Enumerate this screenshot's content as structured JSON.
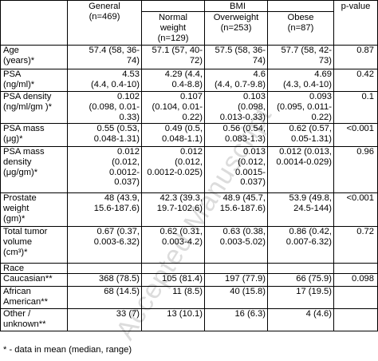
{
  "watermark": "Accepted Manuscript",
  "header": {
    "general": "General\n(n=469)",
    "bmi": "BMI",
    "normal": "Normal\nweight\n(n=129)",
    "overweight": "Overweight\n(n=253)",
    "obese": "Obese\n(n=87)",
    "pvalue": "p-value"
  },
  "rows": [
    {
      "label": "Age\n(years)*",
      "general": "57.4 (58, 36-\n74)",
      "normal": "57.1 (57, 40-\n72)",
      "overweight": "57.5 (58, 36-\n74)",
      "obese": "57.7 (58, 42-\n73)",
      "p": "0.87"
    },
    {
      "label": "PSA\n(ng/ml)*",
      "general": "4.53\n(4.4, 0.4-10)",
      "normal": "4.29 (4.4,\n0.4-8.8)",
      "overweight": "4.6\n(4.4, 0.7-9.8)",
      "obese": "4.69\n(4.3, 0.4-10)",
      "p": "0.42"
    },
    {
      "label": "PSA density\n(ng/ml/gm )*",
      "general": "0.102\n(0.098, 0.01-\n0.33)",
      "normal": "0.107\n(0.104, 0.01-\n0.22)",
      "overweight": "0.103\n(0.098,\n0.013-0.33)",
      "obese": "0.093\n(0.095, 0.011-\n0.22)",
      "p": "0.1"
    },
    {
      "label": "PSA mass\n(μg)*",
      "general": "0.55 (0.53,\n0.048-1.31)",
      "normal": "0.49 (0.5,\n0.048-1.1)",
      "overweight": "0.56 (0.54,\n0.083-1.3)",
      "obese": "0.62 (0.57,\n0.05-1.31)",
      "p": "<0.001"
    },
    {
      "label": "PSA mass\ndensity\n(μg/gm)*",
      "general": "0.012\n(0.012,\n0.0012-\n0.037)",
      "normal": "0.012\n(0.012,\n0.0012-0.025)",
      "overweight": "0.013\n(0.012,\n0.0015-\n0.037)",
      "obese": "0.012 (0.013,\n0.0014-0.029)",
      "p": "0.96"
    },
    {
      "label": "Prostate\nweight\n(gm)*",
      "general": "48 (43.9,\n15.6-187.6)",
      "normal": "42.3 (39.3,\n19.7-102.6)",
      "overweight": "48.9 (45.7,\n15.6-187.6)",
      "obese": "53.9 (49.8,\n24.5-144)",
      "p": "<0.001"
    },
    {
      "label": "Total tumor\nvolume\n(cm³)*",
      "general": "0.67 (0.37,\n0.003-6.32)",
      "normal": "0.62 (0.31,\n0.003-4.2)",
      "overweight": "0.63 (0.38,\n0.003-5.02)",
      "obese": "0.86 (0.42,\n0.007-6.32)",
      "p": "0.72"
    },
    {
      "label": "Race",
      "general": "",
      "normal": "",
      "overweight": "",
      "obese": "",
      "p": ""
    },
    {
      "label": "Caucasian**",
      "general": "368 (78.5)",
      "normal": "105 (81.4)",
      "overweight": "197 (77.9)",
      "obese": "66 (75.9)",
      "p": "0.098"
    },
    {
      "label": "African\nAmerican**",
      "general": "68 (14.5)",
      "normal": "11 (8.5)",
      "overweight": "40 (15.8)",
      "obese": "17 (19.5)",
      "p": ""
    },
    {
      "label": "Other /\nunknown**",
      "general": "33 (7)",
      "normal": "13 (10.1)",
      "overweight": "16 (6.3)",
      "obese": "4 (4.6)",
      "p": ""
    }
  ],
  "footnote": "* - data in mean (median, range)"
}
